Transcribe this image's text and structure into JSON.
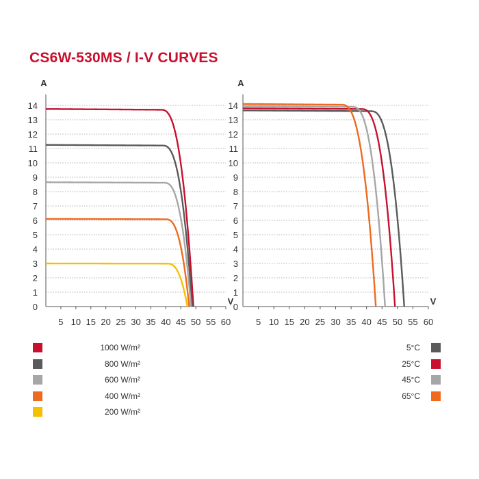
{
  "title": "CS6W-530MS / I-V CURVES",
  "chart_data": [
    {
      "type": "line",
      "xlabel": "V",
      "ylabel": "A",
      "xlim": [
        0,
        60
      ],
      "ylim": [
        0,
        14.5
      ],
      "x_ticks": [
        "5",
        "10",
        "15",
        "20",
        "25",
        "30",
        "35",
        "40",
        "45",
        "50",
        "55",
        "60"
      ],
      "y_ticks": [
        "0",
        "1",
        "2",
        "3",
        "4",
        "5",
        "6",
        "7",
        "8",
        "9",
        "10",
        "11",
        "12",
        "13",
        "14"
      ],
      "grid": true,
      "legend_position": "bottom-left",
      "series": [
        {
          "name": "1000 W/m²",
          "color": "#c8102e",
          "isc": 13.75,
          "voc": 49.2,
          "knee": 38.5
        },
        {
          "name": "800 W/m²",
          "color": "#5a5a5a",
          "isc": 11.25,
          "voc": 48.8,
          "knee": 39.0
        },
        {
          "name": "600 W/m²",
          "color": "#a6a6a6",
          "isc": 8.65,
          "voc": 48.4,
          "knee": 39.5
        },
        {
          "name": "400 W/m²",
          "color": "#ee6a1e",
          "isc": 6.1,
          "voc": 47.8,
          "knee": 40.0
        },
        {
          "name": "200 W/m²",
          "color": "#f6c000",
          "isc": 3.0,
          "voc": 47.2,
          "knee": 40.5
        }
      ]
    },
    {
      "type": "line",
      "xlabel": "V",
      "ylabel": "A",
      "xlim": [
        0,
        60
      ],
      "ylim": [
        0,
        14.5
      ],
      "x_ticks": [
        "5",
        "10",
        "15",
        "20",
        "25",
        "30",
        "35",
        "40",
        "45",
        "50",
        "55",
        "60"
      ],
      "y_ticks": [
        "0",
        "1",
        "2",
        "3",
        "4",
        "5",
        "6",
        "7",
        "8",
        "9",
        "10",
        "11",
        "12",
        "13",
        "14"
      ],
      "grid": true,
      "legend_position": "bottom-right",
      "series": [
        {
          "name": "5°C",
          "color": "#5a5a5a",
          "isc": 13.65,
          "voc": 52.2,
          "knee": 41.5
        },
        {
          "name": "25°C",
          "color": "#c8102e",
          "isc": 13.8,
          "voc": 49.2,
          "knee": 38.5
        },
        {
          "name": "45°C",
          "color": "#a6a6a6",
          "isc": 13.95,
          "voc": 46.0,
          "knee": 35.5
        },
        {
          "name": "65°C",
          "color": "#ee6a1e",
          "isc": 14.1,
          "voc": 43.0,
          "knee": 32.0
        }
      ]
    }
  ]
}
